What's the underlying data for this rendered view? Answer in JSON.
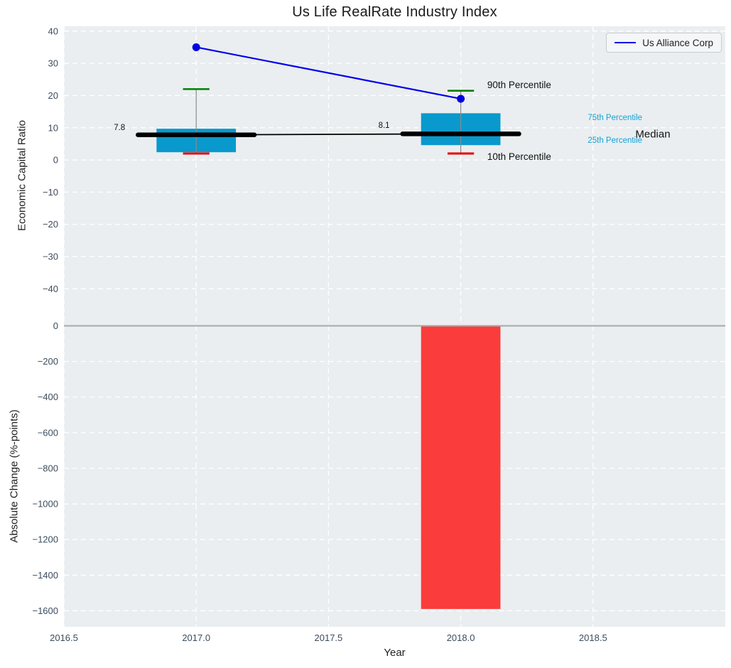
{
  "figure": {
    "title": "Us Life RealRate Industry Index",
    "xlabel": "Year"
  },
  "legend": {
    "label": "Us Alliance Corp",
    "line_color": "#0000ee",
    "position": "upper right"
  },
  "colors": {
    "figure_bg": "#ffffff",
    "axes_bg": "#eaeef0",
    "grid": "#ffffff",
    "tick_label": "#3c4c5c",
    "box_fill": "#0999cc",
    "bar_fill": "#fa3c3c",
    "median_line": "#000000",
    "whisker": "#8a8a8a",
    "cap_top": "#008000",
    "cap_bottom": "#e60000",
    "series_line": "#0000ee",
    "marker_fill": "#0000e0",
    "cyan_label": "#16a1d5",
    "zero_line": "#a8a8a8"
  },
  "chart_data": [
    {
      "type": "boxplot",
      "title": "Us Life RealRate Industry Index",
      "ylabel": "Economic Capital Ratio",
      "xlabel": "Year",
      "xlim": [
        2016.5,
        2019.0
      ],
      "ylim": [
        -51.5,
        41.5
      ],
      "grid": "white-dashed",
      "yticks": [
        40,
        30,
        20,
        10,
        0,
        -10,
        -20,
        -30,
        -40
      ],
      "ytick_labels": [
        "40",
        "30",
        "20",
        "10",
        "0",
        "−10",
        "−20",
        "−30",
        "−40"
      ],
      "xticks": [
        2016.5,
        2017.0,
        2017.5,
        2018.0,
        2018.5
      ],
      "xtick_labels": [
        "2016.5",
        "2017.0",
        "2017.5",
        "2018.0",
        "2018.5"
      ],
      "box_half_width": 0.15,
      "median_half_width": 0.22,
      "cap_half_width": 0.05,
      "boxes": [
        {
          "x": 2017,
          "p10": 2.0,
          "p25": 2.4,
          "median": 7.8,
          "p75": 9.7,
          "p90": 22.0,
          "median_label": "7.8"
        },
        {
          "x": 2018,
          "p10": 2.0,
          "p25": 4.6,
          "median": 8.1,
          "p75": 14.5,
          "p90": 21.5,
          "median_label": "8.1"
        }
      ],
      "median_connector": {
        "x": [
          2017,
          2018
        ],
        "y": [
          7.8,
          8.1
        ]
      },
      "series": [
        {
          "name": "Us Alliance Corp",
          "x": [
            2017,
            2018
          ],
          "y": [
            35,
            19
          ]
        }
      ],
      "annotations": [
        {
          "name": "label-90th-percentile",
          "text": "90th Percentile",
          "x": 2018.1,
          "y": 23.3,
          "size": 13.5,
          "color": "#111111",
          "anchor": "start"
        },
        {
          "name": "label-10th-percentile",
          "text": "10th Percentile",
          "x": 2018.1,
          "y": 1.0,
          "size": 13.5,
          "color": "#111111",
          "anchor": "start"
        },
        {
          "name": "label-75th-percentile",
          "text": "75th Percentile",
          "x": 2018.48,
          "y": 13.0,
          "size": 11.5,
          "color": "#16a1d5",
          "anchor": "start"
        },
        {
          "name": "label-25th-percentile",
          "text": "25th Percentile",
          "x": 2018.48,
          "y": 6.0,
          "size": 11.5,
          "color": "#16a1d5",
          "anchor": "start"
        },
        {
          "name": "label-median",
          "text": "Median",
          "x": 2018.66,
          "y": 8.0,
          "size": 15,
          "color": "#111111",
          "anchor": "start"
        },
        {
          "name": "median-value-2017",
          "text": "7.8",
          "x": 2016.71,
          "y": 9.9,
          "size": 11.5,
          "color": "#111111",
          "anchor": "middle"
        },
        {
          "name": "median-value-2018",
          "text": "8.1",
          "x": 2017.71,
          "y": 10.6,
          "size": 11.5,
          "color": "#111111",
          "anchor": "middle"
        }
      ]
    },
    {
      "type": "bar",
      "ylabel": "Absolute Change (%-points)",
      "xlim": [
        2016.5,
        2019.0
      ],
      "ylim": [
        -1690,
        0
      ],
      "yticks": [
        0,
        -200,
        -400,
        -600,
        -800,
        -1000,
        -1200,
        -1400,
        -1600
      ],
      "ytick_labels": [
        "0",
        "−200",
        "−400",
        "−600",
        "−800",
        "−1000",
        "−1200",
        "−1400",
        "−1600"
      ],
      "bar_width": 0.3,
      "bars": [
        {
          "x": 2018,
          "value": -1590
        }
      ],
      "zero_line": true
    }
  ]
}
